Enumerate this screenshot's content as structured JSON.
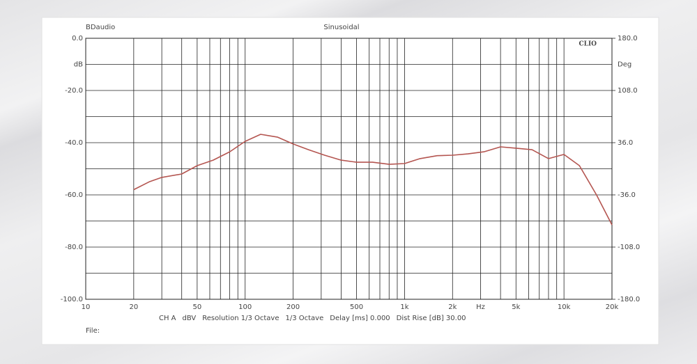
{
  "chart_data": {
    "type": "line",
    "title": "Sinusoidal",
    "brand": "BDaudio",
    "software": "CLIO",
    "x_unit": "Hz",
    "y_unit": "dB",
    "y2_unit": "Deg",
    "settings": [
      "CH A",
      "dBV",
      "Resolution 1/3 Octave",
      "1/3 Octave",
      "Delay [ms] 0.000",
      "Dist Rise [dB] 30.00"
    ],
    "file_label": "File:",
    "log_x": true,
    "grid": true,
    "xlim": [
      10,
      20000
    ],
    "xticks": [
      10,
      20,
      50,
      100,
      200,
      500,
      {
        "value": 1000,
        "label": "1k"
      },
      {
        "value": 2000,
        "label": "2k"
      },
      {
        "value": 5000,
        "label": "5k"
      },
      {
        "value": 10000,
        "label": "10k"
      },
      {
        "value": 20000,
        "label": "20k"
      }
    ],
    "x_minor_ticks": [
      30,
      40,
      60,
      70,
      80,
      90,
      300,
      400,
      600,
      700,
      800,
      900,
      3000,
      4000,
      6000,
      7000,
      8000,
      9000
    ],
    "ylim": [
      -100,
      0
    ],
    "yticks": [
      {
        "value": 0,
        "label": "0.0"
      },
      {
        "value": -20,
        "label": "-20.0"
      },
      {
        "value": -40,
        "label": "-40.0"
      },
      {
        "value": -60,
        "label": "-60.0"
      },
      {
        "value": -80,
        "label": "-80.0"
      },
      {
        "value": -100,
        "label": "-100.0"
      }
    ],
    "y_minor_ticks": [
      -10,
      -30,
      -50,
      -70,
      -90
    ],
    "y2lim": [
      -180,
      180
    ],
    "y2ticks": [
      {
        "value": 180,
        "label": "180.0"
      },
      {
        "value": 108,
        "label": "108.0"
      },
      {
        "value": 36,
        "label": "36.0"
      },
      {
        "value": -36,
        "label": "-36.0"
      },
      {
        "value": -108,
        "label": "-108.0"
      },
      {
        "value": -180,
        "label": "-180.0"
      }
    ],
    "x": [
      20,
      25,
      30,
      40,
      50,
      63,
      80,
      100,
      125,
      160,
      200,
      250,
      315,
      400,
      500,
      630,
      800,
      1000,
      1250,
      1600,
      2000,
      2500,
      3150,
      4000,
      5000,
      6300,
      8000,
      10000,
      12500,
      16000,
      20000
    ],
    "series": [
      {
        "color": "#b45550",
        "values": [
          -58,
          -55,
          -53.3,
          -52,
          -48.8,
          -46.7,
          -43.5,
          -39.5,
          -36.8,
          -37.9,
          -40.5,
          -42.7,
          -44.8,
          -46.7,
          -47.5,
          -47.5,
          -48.3,
          -48,
          -46.1,
          -45,
          -44.8,
          -44.3,
          -43.5,
          -41.6,
          -42.1,
          -42.7,
          -46.1,
          -44.5,
          -48.8,
          -60,
          -71.5
        ]
      }
    ]
  }
}
